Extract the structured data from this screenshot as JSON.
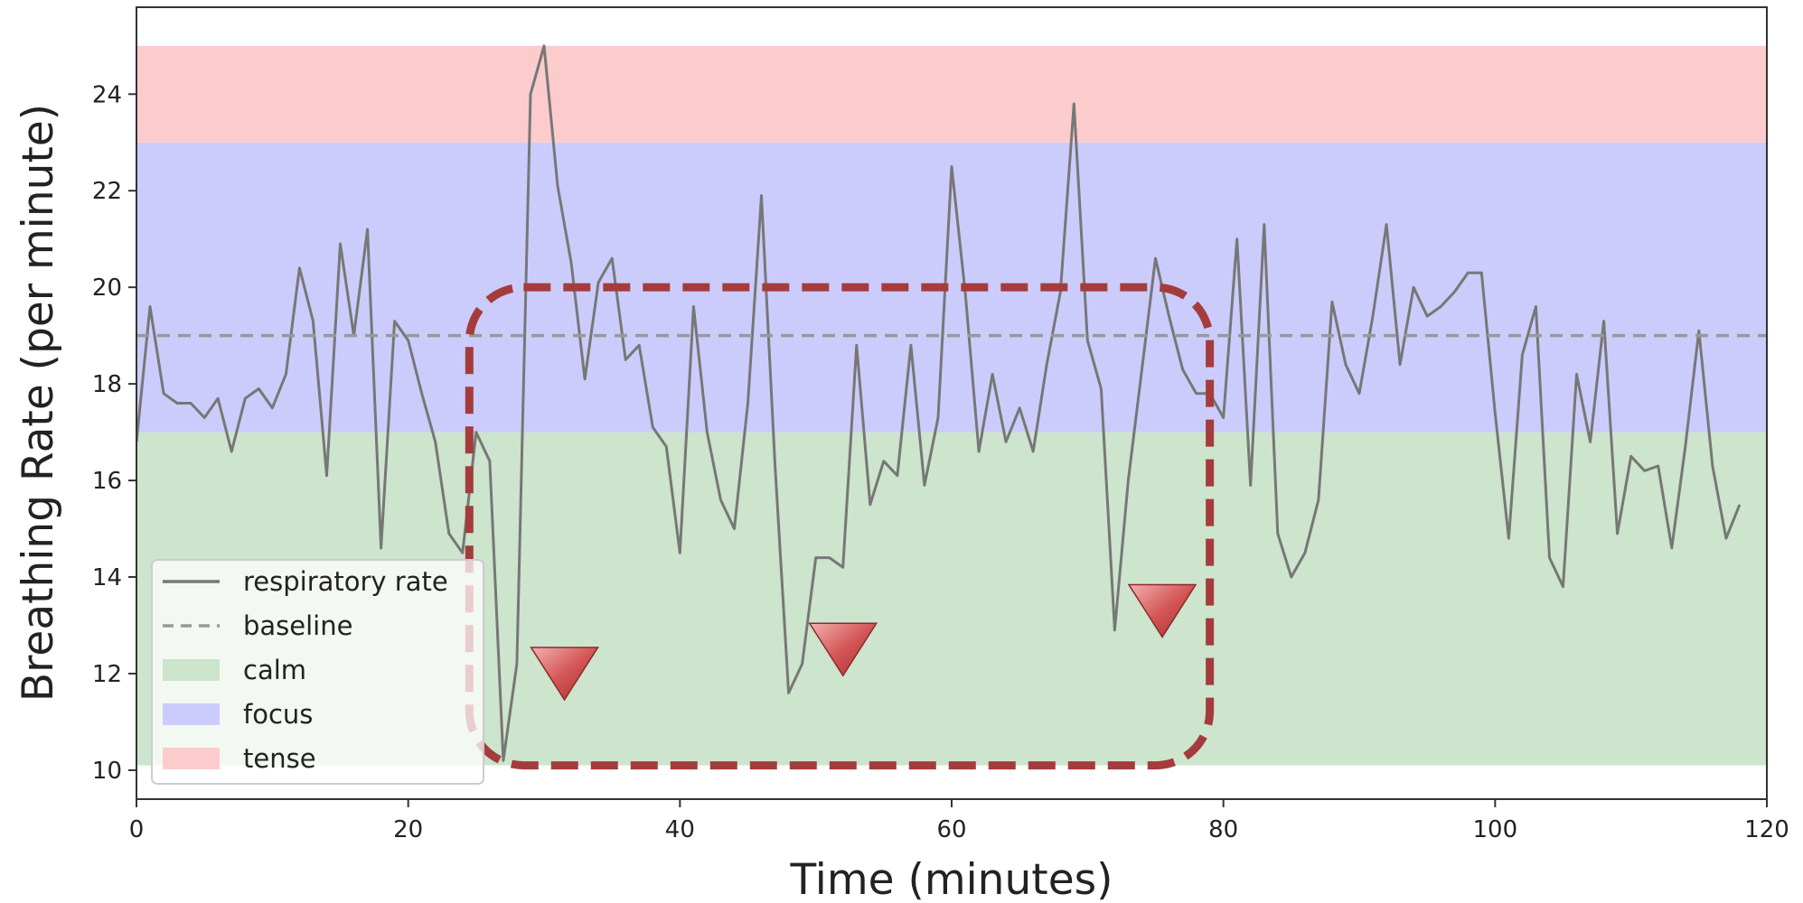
{
  "chart_data": {
    "type": "line",
    "title": "",
    "xlabel": "Time (minutes)",
    "ylabel": "Breathing Rate (per minute)",
    "xlim": [
      0,
      120
    ],
    "ylim": [
      9.4,
      25.8
    ],
    "xticks": [
      0,
      20,
      40,
      60,
      80,
      100,
      120
    ],
    "yticks": [
      10,
      12,
      14,
      16,
      18,
      20,
      22,
      24
    ],
    "grid": false,
    "legend_position": "lower-left",
    "series": [
      {
        "name": "respiratory rate",
        "color": "#777777",
        "style": "solid",
        "x": [
          0,
          1,
          2,
          3,
          4,
          5,
          6,
          7,
          8,
          9,
          10,
          11,
          12,
          13,
          14,
          15,
          16,
          17,
          18,
          19,
          20,
          21,
          22,
          23,
          24,
          25,
          26,
          27,
          28,
          29,
          30,
          31,
          32,
          33,
          34,
          35,
          36,
          37,
          38,
          39,
          40,
          41,
          42,
          43,
          44,
          45,
          46,
          47,
          48,
          49,
          50,
          51,
          52,
          53,
          54,
          55,
          56,
          57,
          58,
          59,
          60,
          61,
          62,
          63,
          64,
          65,
          66,
          67,
          68,
          69,
          70,
          71,
          72,
          73,
          74,
          75,
          76,
          77,
          78,
          79,
          80,
          81,
          82,
          83,
          84,
          85,
          86,
          87,
          88,
          89,
          90,
          91,
          92,
          93,
          94,
          95,
          96,
          97,
          98,
          99,
          100,
          101,
          102,
          103,
          104,
          105,
          106,
          107,
          108,
          109,
          110,
          111,
          112,
          113,
          114,
          115,
          116,
          117,
          118
        ],
        "y": [
          16.8,
          19.6,
          17.8,
          17.6,
          17.6,
          17.3,
          17.7,
          16.6,
          17.7,
          17.9,
          17.5,
          18.2,
          20.4,
          19.3,
          16.1,
          20.9,
          19.0,
          21.2,
          14.6,
          19.3,
          18.9,
          17.8,
          16.8,
          14.9,
          14.5,
          17.0,
          16.4,
          10.2,
          12.2,
          24.0,
          25.0,
          22.1,
          20.5,
          18.1,
          20.1,
          20.6,
          18.5,
          18.8,
          17.1,
          16.7,
          14.5,
          19.6,
          17.0,
          15.6,
          15.0,
          17.6,
          21.9,
          16.3,
          11.6,
          12.2,
          14.4,
          14.4,
          14.2,
          18.8,
          15.5,
          16.4,
          16.1,
          18.8,
          15.9,
          17.3,
          22.5,
          19.9,
          16.6,
          18.2,
          16.8,
          17.5,
          16.6,
          18.4,
          19.9,
          23.8,
          18.9,
          17.9,
          12.9,
          16.0,
          18.3,
          20.6,
          19.4,
          18.3,
          17.8,
          17.8,
          17.3,
          21.0,
          15.9,
          21.3,
          14.9,
          14.0,
          14.5,
          15.6,
          19.7,
          18.4,
          17.8,
          19.4,
          21.3,
          18.4,
          20.0,
          19.4,
          19.6,
          19.9,
          20.3,
          20.3,
          17.4,
          14.8,
          18.6,
          19.6,
          14.4,
          13.8,
          18.2,
          16.8,
          19.3,
          14.9,
          16.5,
          16.2,
          16.3,
          14.6,
          16.7,
          19.1,
          16.3,
          14.8,
          15.5
        ]
      },
      {
        "name": "baseline",
        "color": "#999999",
        "style": "dashed",
        "value": 19.0
      }
    ],
    "bands": [
      {
        "name": "calm",
        "from": 10.1,
        "to": 17.0,
        "color": "#cde4cd"
      },
      {
        "name": "focus",
        "from": 17.0,
        "to": 23.0,
        "color": "#ccccfc"
      },
      {
        "name": "tense",
        "from": 23.0,
        "to": 25.0,
        "color": "#fccccc"
      }
    ],
    "annotations": {
      "highlight_box": {
        "x_range": [
          24.5,
          79
        ],
        "y_range": [
          10.1,
          20
        ],
        "color": "#a43c3c",
        "style": "dashed-rounded"
      },
      "markers": [
        {
          "x": 31.5,
          "y": 12.0,
          "shape": "triangle-down",
          "color": "#d05050"
        },
        {
          "x": 52.0,
          "y": 12.5,
          "shape": "triangle-down",
          "color": "#d05050"
        },
        {
          "x": 75.5,
          "y": 13.3,
          "shape": "triangle-down",
          "color": "#d05050"
        }
      ]
    }
  }
}
